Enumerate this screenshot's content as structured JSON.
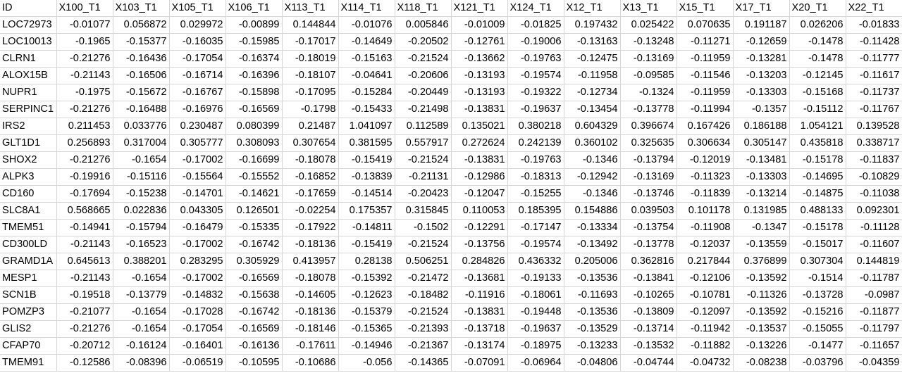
{
  "sheet": {
    "columns": [
      "ID",
      "X100_T1",
      "X103_T1",
      "X105_T1",
      "X106_T1",
      "X113_T1",
      "X114_T1",
      "X118_T1",
      "X121_T1",
      "X124_T1",
      "X12_T1",
      "X13_T1",
      "X15_T1",
      "X17_T1",
      "X20_T1",
      "X22_T1"
    ],
    "rows": [
      [
        "LOC72973",
        "-0.01077",
        "0.056872",
        "0.029972",
        "-0.00899",
        "0.144844",
        "-0.01076",
        "0.005846",
        "-0.01009",
        "-0.01825",
        "0.197432",
        "0.025422",
        "0.070635",
        "0.191187",
        "0.026206",
        "-0.01833"
      ],
      [
        "LOC10013",
        "-0.1965",
        "-0.15377",
        "-0.16035",
        "-0.15985",
        "-0.17017",
        "-0.14649",
        "-0.20502",
        "-0.12761",
        "-0.19006",
        "-0.13163",
        "-0.13248",
        "-0.11271",
        "-0.12659",
        "-0.1478",
        "-0.11428"
      ],
      [
        "CLRN1",
        "-0.21276",
        "-0.16436",
        "-0.17054",
        "-0.16374",
        "-0.18019",
        "-0.15163",
        "-0.21524",
        "-0.13662",
        "-0.19763",
        "-0.12475",
        "-0.13169",
        "-0.11959",
        "-0.13281",
        "-0.1478",
        "-0.11777"
      ],
      [
        "ALOX15B",
        "-0.21143",
        "-0.16506",
        "-0.16714",
        "-0.16396",
        "-0.18107",
        "-0.04641",
        "-0.20606",
        "-0.13193",
        "-0.19574",
        "-0.11958",
        "-0.09585",
        "-0.11546",
        "-0.13203",
        "-0.12145",
        "-0.11617"
      ],
      [
        "NUPR1",
        "-0.1975",
        "-0.15672",
        "-0.16767",
        "-0.15898",
        "-0.17095",
        "-0.15284",
        "-0.20449",
        "-0.13193",
        "-0.19322",
        "-0.12734",
        "-0.1324",
        "-0.11959",
        "-0.13303",
        "-0.15168",
        "-0.11737"
      ],
      [
        "SERPINC1",
        "-0.21276",
        "-0.16488",
        "-0.16976",
        "-0.16569",
        "-0.1798",
        "-0.15433",
        "-0.21498",
        "-0.13831",
        "-0.19637",
        "-0.13454",
        "-0.13778",
        "-0.11994",
        "-0.1357",
        "-0.15112",
        "-0.11767"
      ],
      [
        "IRS2",
        "0.211453",
        "0.033776",
        "0.230487",
        "0.080399",
        "0.21487",
        "1.041097",
        "0.112589",
        "0.135021",
        "0.380218",
        "0.604329",
        "0.396674",
        "0.167426",
        "0.186188",
        "1.054121",
        "0.139528"
      ],
      [
        "GLT1D1",
        "0.256893",
        "0.317004",
        "0.305777",
        "0.308093",
        "0.307654",
        "0.381595",
        "0.557917",
        "0.272624",
        "0.242139",
        "0.360102",
        "0.325635",
        "0.306634",
        "0.305147",
        "0.435818",
        "0.338717"
      ],
      [
        "SHOX2",
        "-0.21276",
        "-0.1654",
        "-0.17002",
        "-0.16699",
        "-0.18078",
        "-0.15419",
        "-0.21524",
        "-0.13831",
        "-0.19763",
        "-0.1346",
        "-0.13794",
        "-0.12019",
        "-0.13481",
        "-0.15178",
        "-0.11837"
      ],
      [
        "ALPK3",
        "-0.19916",
        "-0.15116",
        "-0.15564",
        "-0.15552",
        "-0.16852",
        "-0.13839",
        "-0.21131",
        "-0.12986",
        "-0.18313",
        "-0.12942",
        "-0.13169",
        "-0.11323",
        "-0.13303",
        "-0.14695",
        "-0.10829"
      ],
      [
        "CD160",
        "-0.17694",
        "-0.15238",
        "-0.14701",
        "-0.14621",
        "-0.17659",
        "-0.14514",
        "-0.20423",
        "-0.12047",
        "-0.15255",
        "-0.1346",
        "-0.13746",
        "-0.11839",
        "-0.13214",
        "-0.14875",
        "-0.11038"
      ],
      [
        "SLC8A1",
        "0.568665",
        "0.022836",
        "0.043305",
        "0.126501",
        "-0.02254",
        "0.175357",
        "0.315845",
        "0.110053",
        "0.185395",
        "0.154886",
        "0.039503",
        "0.101178",
        "0.131985",
        "0.488133",
        "0.092301"
      ],
      [
        "TMEM51",
        "-0.14941",
        "-0.15794",
        "-0.16479",
        "-0.15335",
        "-0.17922",
        "-0.14811",
        "-0.1502",
        "-0.12291",
        "-0.17147",
        "-0.13334",
        "-0.13754",
        "-0.11908",
        "-0.1347",
        "-0.15178",
        "-0.11128"
      ],
      [
        "CD300LD",
        "-0.21143",
        "-0.16523",
        "-0.17002",
        "-0.16742",
        "-0.18136",
        "-0.15419",
        "-0.21524",
        "-0.13756",
        "-0.19574",
        "-0.13492",
        "-0.13778",
        "-0.12037",
        "-0.13559",
        "-0.15017",
        "-0.11607"
      ],
      [
        "GRAMD1A",
        "0.645613",
        "0.388201",
        "0.283295",
        "0.305929",
        "0.413957",
        "0.28138",
        "0.506251",
        "0.284826",
        "0.436332",
        "0.205006",
        "0.362816",
        "0.217844",
        "0.376899",
        "0.307304",
        "0.144819"
      ],
      [
        "MESP1",
        "-0.21143",
        "-0.1654",
        "-0.17002",
        "-0.16569",
        "-0.18078",
        "-0.15392",
        "-0.21472",
        "-0.13681",
        "-0.19133",
        "-0.13536",
        "-0.13841",
        "-0.12106",
        "-0.13592",
        "-0.1514",
        "-0.11787"
      ],
      [
        "SCN1B",
        "-0.19518",
        "-0.13779",
        "-0.14832",
        "-0.15638",
        "-0.14605",
        "-0.12623",
        "-0.18482",
        "-0.11916",
        "-0.18061",
        "-0.11693",
        "-0.10265",
        "-0.10781",
        "-0.11326",
        "-0.13728",
        "-0.0987"
      ],
      [
        "POMZP3",
        "-0.21077",
        "-0.1654",
        "-0.17028",
        "-0.16742",
        "-0.18136",
        "-0.15379",
        "-0.21524",
        "-0.13831",
        "-0.19448",
        "-0.13536",
        "-0.13809",
        "-0.12097",
        "-0.13592",
        "-0.15216",
        "-0.11877"
      ],
      [
        "GLIS2",
        "-0.21276",
        "-0.1654",
        "-0.17054",
        "-0.16569",
        "-0.18146",
        "-0.15365",
        "-0.21393",
        "-0.13718",
        "-0.19637",
        "-0.13529",
        "-0.13714",
        "-0.11942",
        "-0.13537",
        "-0.15055",
        "-0.11797"
      ],
      [
        "CFAP70",
        "-0.20712",
        "-0.16124",
        "-0.16401",
        "-0.16136",
        "-0.17611",
        "-0.14946",
        "-0.21367",
        "-0.13174",
        "-0.18975",
        "-0.13233",
        "-0.13532",
        "-0.11882",
        "-0.13226",
        "-0.1477",
        "-0.11657"
      ],
      [
        "TMEM91",
        "-0.12586",
        "-0.08396",
        "-0.06519",
        "-0.10595",
        "-0.10686",
        "-0.056",
        "-0.14365",
        "-0.07091",
        "-0.06964",
        "-0.04806",
        "-0.04744",
        "-0.04732",
        "-0.08238",
        "-0.03796",
        "-0.04359"
      ]
    ]
  }
}
